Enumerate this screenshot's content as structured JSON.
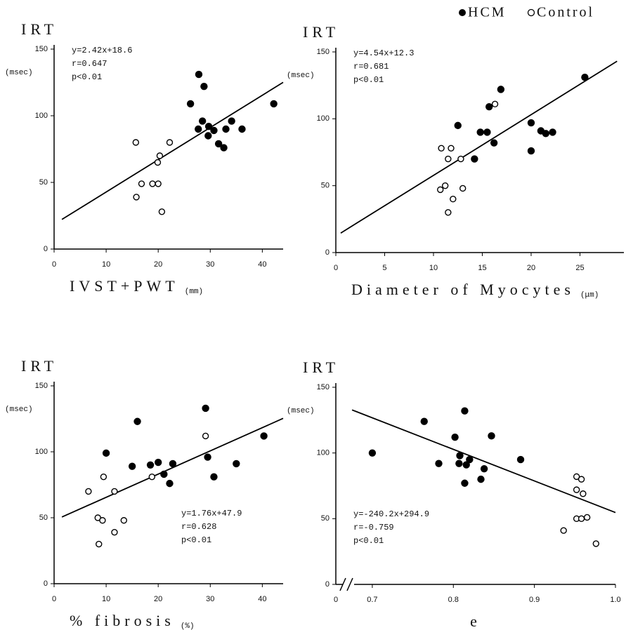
{
  "chart_data": [
    {
      "type": "scatter",
      "ylabel": "IRT",
      "yunit": "(msec)",
      "xlabel": "IVST+PWT",
      "xunit": "(mm)",
      "annotations": [
        "y=2.42x+18.6",
        "r=0.647",
        "p<0.01"
      ],
      "annotation_corner": "top-left",
      "xlim": [
        0,
        44
      ],
      "ylim": [
        0,
        150
      ],
      "xticks": [
        0,
        10,
        20,
        30,
        40
      ],
      "yticks": [
        0,
        50,
        100,
        150
      ],
      "fit": {
        "slope": 2.42,
        "intercept": 18.6,
        "x": [
          1.5,
          44
        ]
      },
      "series": [
        {
          "name": "HCM",
          "color": "#000000",
          "marker": "filled",
          "x": [
            27.8,
            28.8,
            26.2,
            27.7,
            28.5,
            29.7,
            29.6,
            30.7,
            31.6,
            32.6,
            33.0,
            34.1,
            36.1,
            42.2
          ],
          "values": [
            131,
            122,
            109,
            90,
            96,
            92,
            85,
            89,
            79,
            76,
            90,
            96,
            90,
            109
          ]
        },
        {
          "name": "Control",
          "color": "#000000",
          "marker": "open",
          "x": [
            15.7,
            22.2,
            20.3,
            19.9,
            16.8,
            18.9,
            20.0,
            15.8,
            20.7
          ],
          "values": [
            80,
            80,
            70,
            65,
            49,
            49,
            49,
            39,
            28
          ]
        }
      ]
    },
    {
      "type": "scatter",
      "ylabel": "IRT",
      "yunit": "(msec)",
      "xlabel": "Diameter of Myocytes",
      "xunit": "(μm)",
      "annotations": [
        "y=4.54x+12.3",
        "r=0.681",
        "p<0.01"
      ],
      "annotation_corner": "top-left",
      "xlim": [
        0,
        29.5
      ],
      "ylim": [
        0,
        150
      ],
      "xticks": [
        0,
        5,
        10,
        15,
        20,
        25
      ],
      "yticks": [
        0,
        50,
        100,
        150
      ],
      "fit": {
        "slope": 4.54,
        "intercept": 12.3,
        "x": [
          0.5,
          28.8
        ]
      },
      "series": [
        {
          "name": "HCM",
          "color": "#000000",
          "marker": "filled",
          "x": [
            12.5,
            14.2,
            14.8,
            15.5,
            15.7,
            16.2,
            16.9,
            20.0,
            20.0,
            21.0,
            21.5,
            22.2,
            25.5
          ],
          "values": [
            95,
            70,
            90,
            90,
            109,
            82,
            122,
            97,
            76,
            91,
            89,
            90,
            131
          ]
        },
        {
          "name": "Control",
          "color": "#000000",
          "marker": "open",
          "x": [
            10.8,
            11.8,
            11.5,
            12.8,
            10.7,
            11.2,
            13.0,
            12.0,
            11.5,
            16.3
          ],
          "values": [
            78,
            78,
            70,
            70,
            47,
            50,
            48,
            40,
            30,
            111
          ]
        }
      ]
    },
    {
      "type": "scatter",
      "ylabel": "IRT",
      "yunit": "(msec)",
      "xlabel": "% fibrosis",
      "xunit": "(%)",
      "annotations": [
        "y=1.76x+47.9",
        "r=0.628",
        "p<0.01"
      ],
      "annotation_corner": "bottom-right",
      "xlim": [
        0,
        44
      ],
      "ylim": [
        0,
        150
      ],
      "xticks": [
        0,
        10,
        20,
        30,
        40
      ],
      "yticks": [
        0,
        50,
        100,
        150
      ],
      "fit": {
        "slope": 1.76,
        "intercept": 47.9,
        "x": [
          1.5,
          44
        ]
      },
      "series": [
        {
          "name": "HCM",
          "color": "#000000",
          "marker": "filled",
          "x": [
            10.0,
            15.0,
            16.0,
            18.5,
            20.0,
            21.1,
            22.2,
            22.8,
            29.1,
            29.5,
            30.7,
            35.0,
            40.3
          ],
          "values": [
            99,
            89,
            123,
            90,
            92,
            83,
            76,
            91,
            133,
            96,
            81,
            91,
            112
          ]
        },
        {
          "name": "Control",
          "color": "#000000",
          "marker": "open",
          "x": [
            6.6,
            9.5,
            11.6,
            8.4,
            9.3,
            13.4,
            11.6,
            8.6,
            18.8,
            29.1
          ],
          "values": [
            70,
            81,
            70,
            50,
            48,
            48,
            39,
            30,
            81,
            112
          ]
        }
      ]
    },
    {
      "type": "scatter",
      "ylabel": "IRT",
      "yunit": "(msec)",
      "xlabel": "e",
      "annotations": [
        "y=-240.2x+294.9",
        "r=-0.759",
        "p<0.01"
      ],
      "annotation_corner": "bottom-left",
      "xlim": [
        0.655,
        1.0
      ],
      "ylim": [
        0,
        150
      ],
      "x_origin_label": "0",
      "xticks": [
        0.7,
        0.8,
        0.9,
        {
          "value": 1.0,
          "label": "1.0"
        }
      ],
      "yticks": [
        0,
        50,
        100,
        150
      ],
      "fit": {
        "slope": -240.2,
        "intercept": 294.9,
        "x": [
          0.675,
          1.0
        ]
      },
      "series": [
        {
          "name": "HCM",
          "color": "#000000",
          "marker": "filled",
          "x": [
            0.7,
            0.764,
            0.782,
            0.802,
            0.808,
            0.807,
            0.814,
            0.816,
            0.82,
            0.814,
            0.834,
            0.838,
            0.847,
            0.883
          ],
          "values": [
            100,
            124,
            92,
            112,
            98,
            92,
            132,
            91,
            95,
            77,
            80,
            88,
            113,
            95
          ]
        },
        {
          "name": "Control",
          "color": "#000000",
          "marker": "open",
          "x": [
            0.952,
            0.958,
            0.952,
            0.96,
            0.952,
            0.958,
            0.965,
            0.936,
            0.976
          ],
          "values": [
            82,
            80,
            72,
            69,
            50,
            50,
            51,
            41,
            31
          ]
        }
      ]
    }
  ]
}
